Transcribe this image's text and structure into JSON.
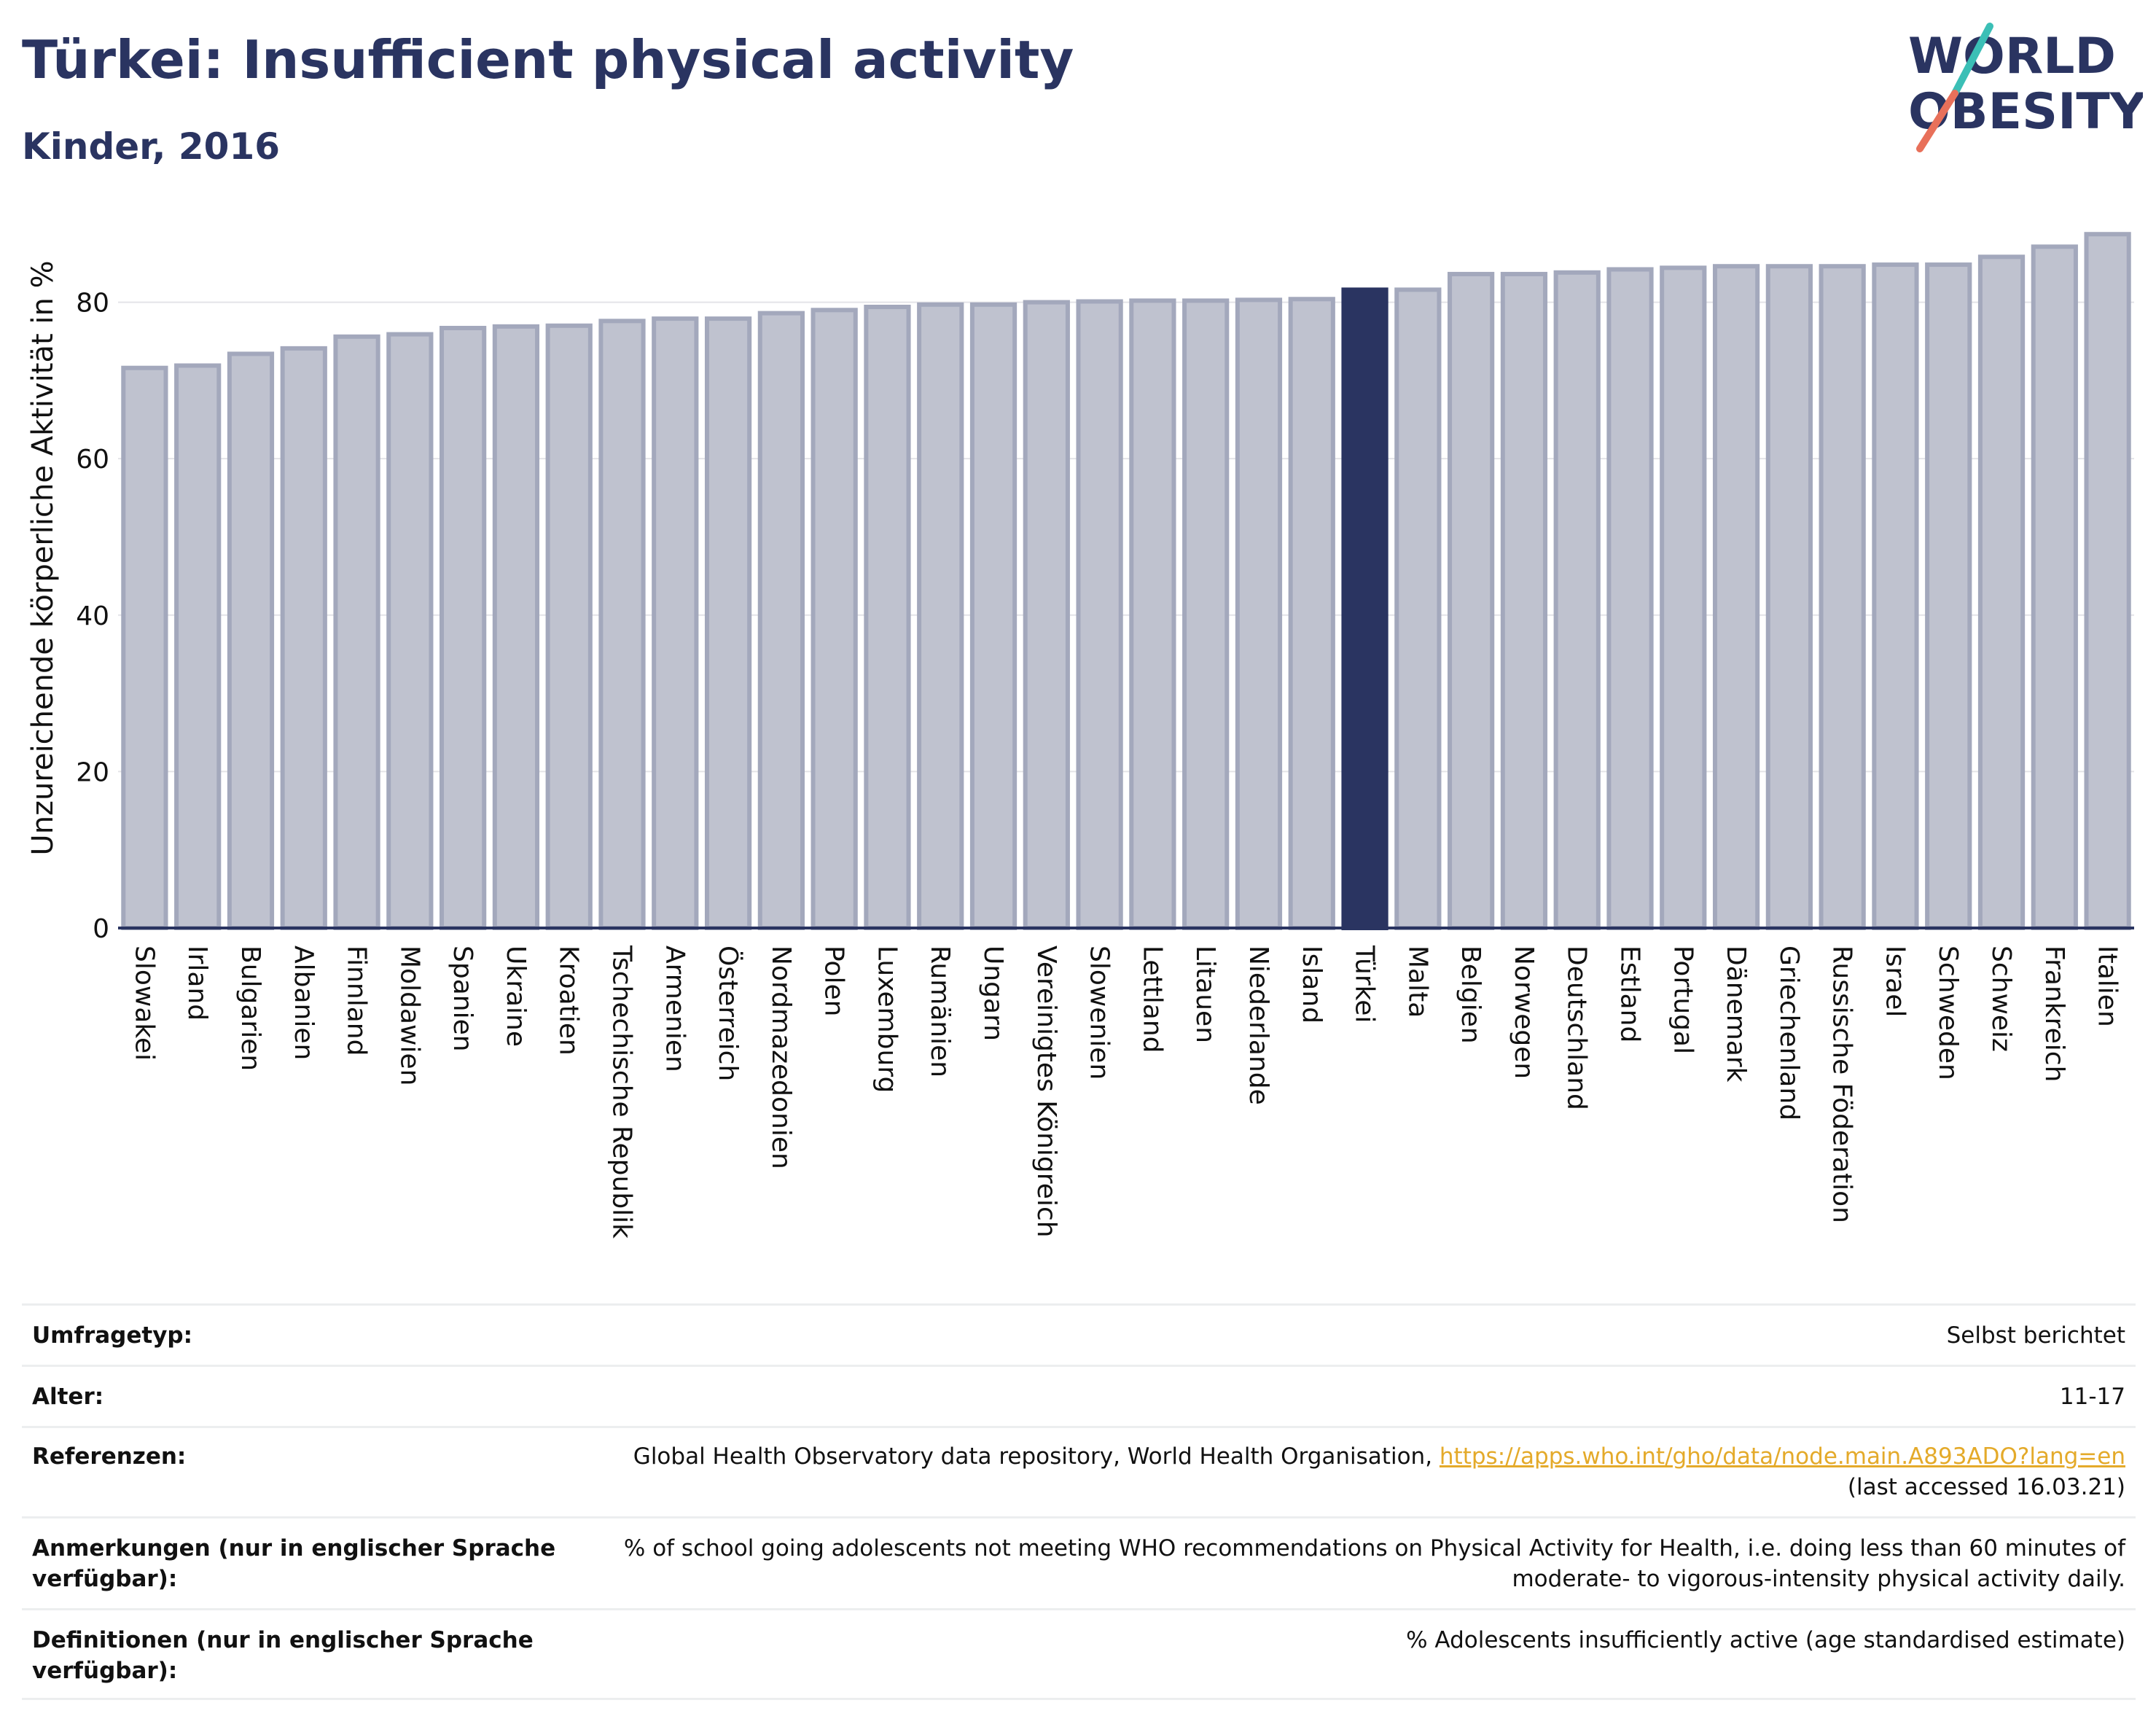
{
  "header": {
    "title": "Türkei: Insufficient physical activity",
    "subtitle": "Kinder, 2016"
  },
  "logo": {
    "line1": "WORLD",
    "line2": "OBESITY",
    "colors": {
      "text": "#2a3461",
      "slash_teal": "#3bbfb6",
      "slash_coral": "#e8705a"
    }
  },
  "colors": {
    "bar": "#bfc2cf",
    "bar_stroke": "#a3a8bc",
    "highlight": "#2a3461",
    "grid": "#e4e4e8",
    "axis": "#2a3461"
  },
  "chart_data": {
    "type": "bar",
    "title": "",
    "xlabel": "",
    "ylabel": "Unzureichende körperliche Aktivität in %",
    "ylim": [
      0,
      89
    ],
    "yticks": [
      0,
      20,
      40,
      60,
      80
    ],
    "grid": true,
    "highlight": "Türkei",
    "categories": [
      "Slowakei",
      "Irland",
      "Bulgarien",
      "Albanien",
      "Finnland",
      "Moldawien",
      "Spanien",
      "Ukraine",
      "Kroatien",
      "Tschechische Republik",
      "Armenien",
      "Österreich",
      "Nordmazedonien",
      "Polen",
      "Luxemburg",
      "Rumänien",
      "Ungarn",
      "Vereinigtes Königreich",
      "Slowenien",
      "Lettland",
      "Litauen",
      "Niederlande",
      "Island",
      "Türkei",
      "Malta",
      "Belgien",
      "Norwegen",
      "Deutschland",
      "Estland",
      "Portugal",
      "Dänemark",
      "Griechenland",
      "Russische Föderation",
      "Israel",
      "Schweden",
      "Schweiz",
      "Frankreich",
      "Italien"
    ],
    "values": [
      71.6,
      71.9,
      73.4,
      74.1,
      75.6,
      75.9,
      76.7,
      76.9,
      77.0,
      77.6,
      77.9,
      77.9,
      78.6,
      79.0,
      79.4,
      79.7,
      79.7,
      80.0,
      80.1,
      80.2,
      80.2,
      80.3,
      80.4,
      81.6,
      81.6,
      83.6,
      83.6,
      83.8,
      84.2,
      84.4,
      84.6,
      84.6,
      84.6,
      84.8,
      84.8,
      85.8,
      87.1,
      88.7
    ]
  },
  "meta": {
    "rows": [
      {
        "label": "Umfragetyp:",
        "value": "Selbst berichtet"
      },
      {
        "label": "Alter:",
        "value": "11-17"
      },
      {
        "label": "Referenzen:",
        "value": "Global Health Observatory data repository, World Health Organisation,",
        "link": "https://apps.who.int/gho/data/node.main.A893ADO?lang=en",
        "value2": "(last accessed 16.03.21)"
      },
      {
        "label": "Anmerkungen (nur in englischer Sprache verfügbar):",
        "value": "% of school going adolescents not meeting WHO recommendations on Physical Activity for Health, i.e. doing less than 60 minutes of moderate- to vigorous-intensity physical activity daily."
      },
      {
        "label": "Definitionen (nur in englischer Sprache verfügbar):",
        "value": "% Adolescents insufficiently active (age standardised estimate)"
      }
    ]
  }
}
